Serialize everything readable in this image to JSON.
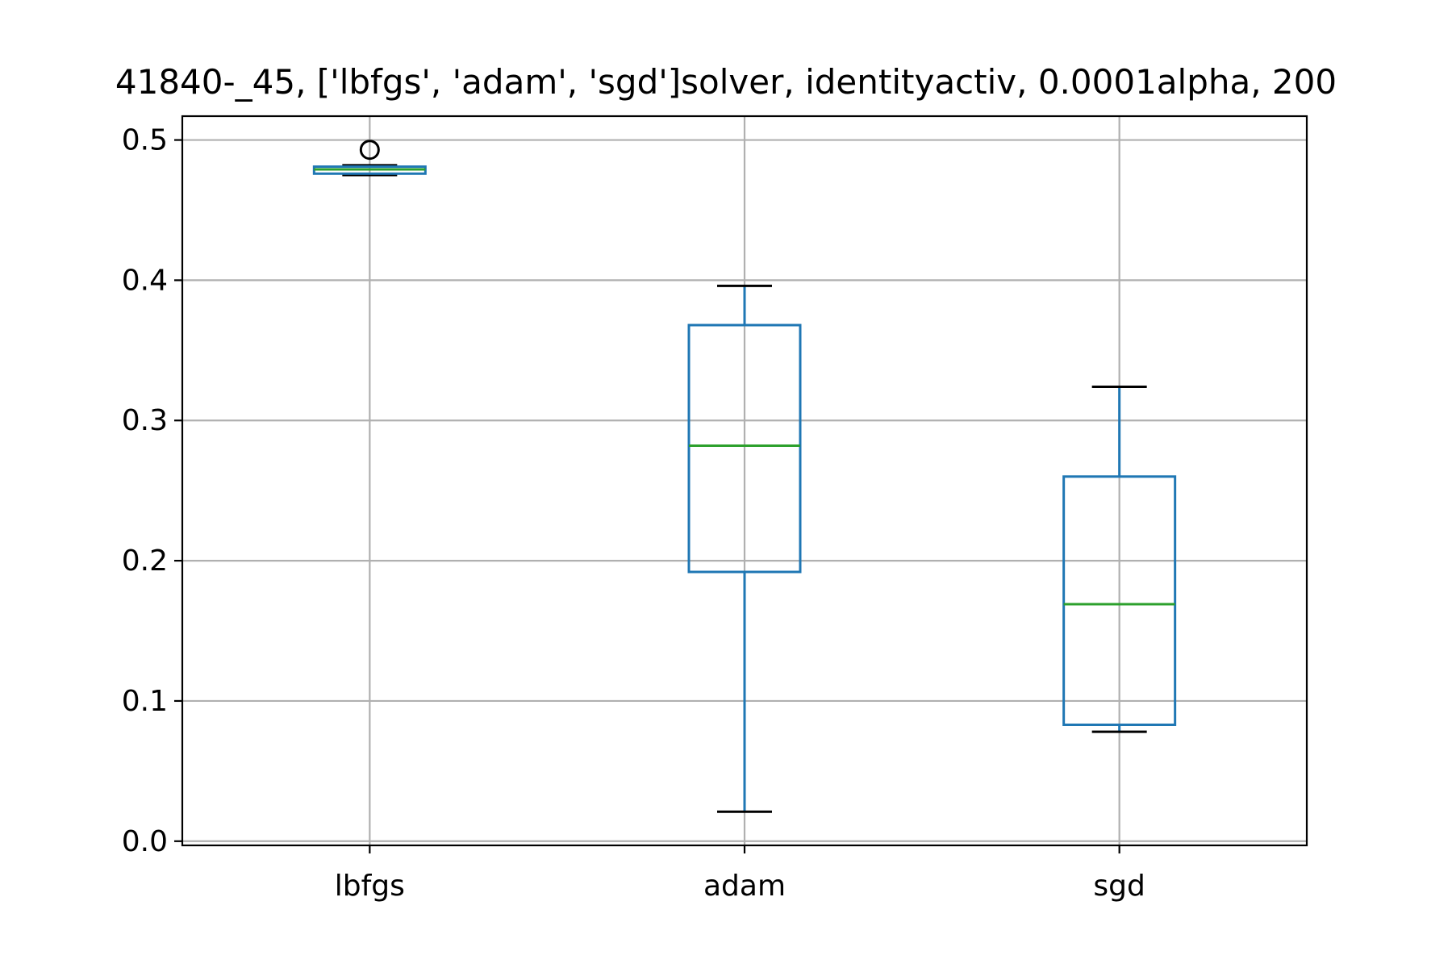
{
  "chart_data": {
    "type": "box",
    "title": "41840-_45, ['lbfgs', 'adam', 'sgd']solver, identityactiv, 0.0001alpha, 200",
    "xlabel": "",
    "ylabel": "",
    "ylim": [
      -0.003,
      0.517
    ],
    "yticks": [
      0.0,
      0.1,
      0.2,
      0.3,
      0.4,
      0.5
    ],
    "ytick_labels": [
      "0.0",
      "0.1",
      "0.2",
      "0.3",
      "0.4",
      "0.5"
    ],
    "grid": true,
    "categories": [
      "lbfgs",
      "adam",
      "sgd"
    ],
    "boxes": [
      {
        "category": "lbfgs",
        "whisker_low": 0.475,
        "q1": 0.476,
        "median": 0.479,
        "q3": 0.481,
        "whisker_high": 0.482,
        "outliers": [
          0.493
        ]
      },
      {
        "category": "adam",
        "whisker_low": 0.021,
        "q1": 0.192,
        "median": 0.282,
        "q3": 0.368,
        "whisker_high": 0.396,
        "outliers": []
      },
      {
        "category": "sgd",
        "whisker_low": 0.078,
        "q1": 0.083,
        "median": 0.169,
        "q3": 0.26,
        "whisker_high": 0.324,
        "outliers": []
      }
    ],
    "colors": {
      "box": "#1f77b4",
      "median": "#2ca02c",
      "whisker_cap": "#000000",
      "outlier": "#000000",
      "grid": "#b0b0b0"
    }
  }
}
